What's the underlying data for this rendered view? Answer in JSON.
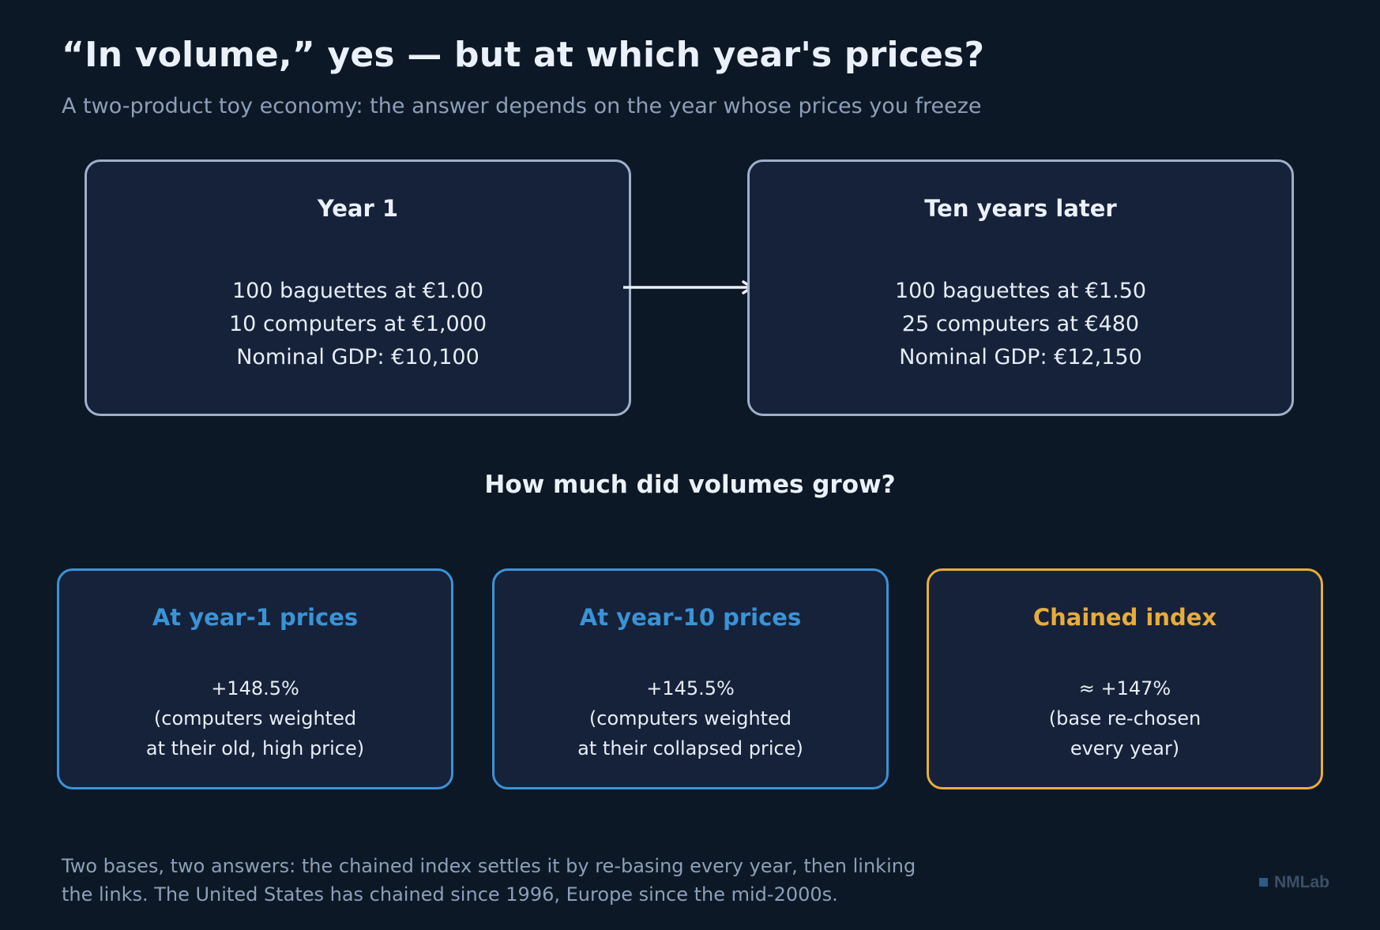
{
  "title": "“In volume,” yes — but at which year's prices?",
  "subtitle": "A two-product toy economy: the answer depends on the year whose prices you freeze",
  "year1": {
    "heading": "Year 1",
    "lines": [
      "100 baguettes at €1.00",
      "10 computers at €1,000",
      "Nominal GDP: €10,100"
    ]
  },
  "year10": {
    "heading": "Ten years later",
    "lines": [
      "100 baguettes at €1.50",
      "25 computers at €480",
      "Nominal GDP: €12,150"
    ]
  },
  "question": "How much did volumes grow?",
  "results": {
    "year1_prices": {
      "heading": "At year-1 prices",
      "lines": [
        "+148.5%",
        "(computers weighted",
        "at their old, high price)"
      ]
    },
    "year10_prices": {
      "heading": "At year-10 prices",
      "lines": [
        "+145.5%",
        "(computers weighted",
        "at their collapsed price)"
      ]
    },
    "chained": {
      "heading": "Chained index",
      "lines": [
        "≈ +147%",
        "(base re-chosen",
        "every year)"
      ]
    }
  },
  "footnote": [
    "Two bases, two answers: the chained index settles it by re-basing every year, then linking",
    "the links. The United States has chained since 1996, Europe since the mid-2000s."
  ],
  "brand": "NMLab",
  "colors": {
    "background": "#0d1826",
    "panel": "#16223a",
    "blue_accent": "#3a93d6",
    "orange_accent": "#e8ac3c",
    "muted_text": "#8d9fb8"
  }
}
